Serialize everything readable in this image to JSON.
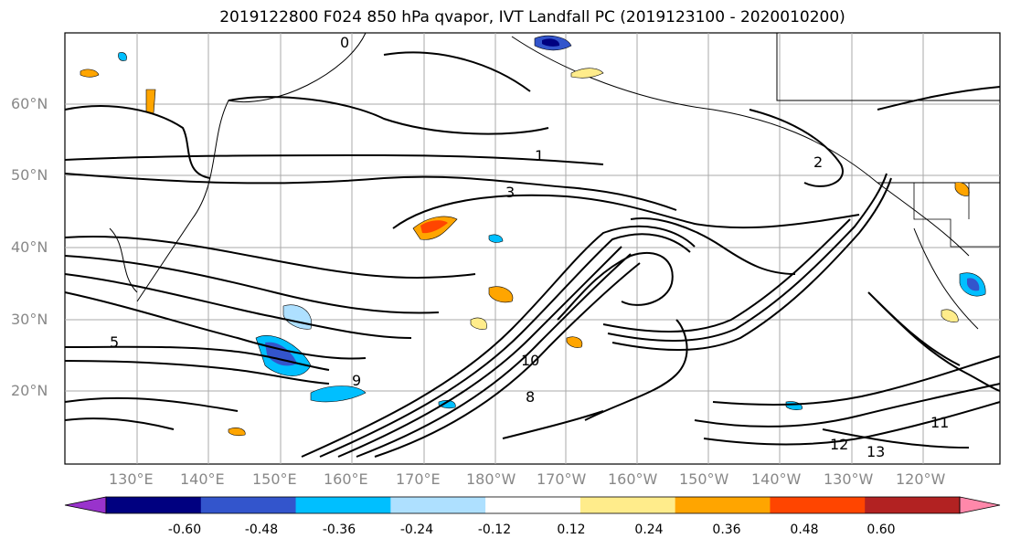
{
  "title": "2019122800 F024 850 hPa qvapor, IVT Landfall PC (2019123100 - 2020010200)",
  "lat_labels": [
    "60°N",
    "50°N",
    "40°N",
    "30°N",
    "20°N"
  ],
  "lon_labels": [
    "130°E",
    "140°E",
    "150°E",
    "160°E",
    "170°E",
    "180°W",
    "170°W",
    "160°W",
    "150°W",
    "140°W",
    "130°W",
    "120°W"
  ],
  "colorbar": {
    "ticks": [
      "-0.60",
      "-0.48",
      "-0.36",
      "-0.24",
      "-0.12",
      "0.12",
      "0.24",
      "0.36",
      "0.48",
      "0.60"
    ],
    "colors": [
      "#9933cc",
      "#000080",
      "#3355cc",
      "#00bfff",
      "#aee0ff",
      "#ffffff",
      "#ffec8b",
      "#ffa500",
      "#ff4500",
      "#b22222",
      "#ff88aa"
    ]
  },
  "contour_labels": [
    "0",
    "1",
    "2",
    "3",
    "5",
    "8",
    "9",
    "10",
    "11",
    "12",
    "13"
  ],
  "colors": {
    "label_gray": "#888888",
    "contour": "#000000"
  }
}
